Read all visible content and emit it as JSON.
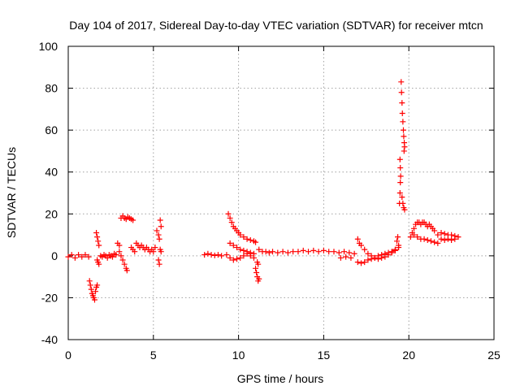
{
  "chart_data": {
    "type": "scatter",
    "title": "Day 104 of 2017, Sidereal Day-to-day VTEC variation (SDTVAR) for receiver mtcn",
    "xlabel": "GPS time / hours",
    "ylabel": "SDTVAR / TECUs",
    "xlim": [
      0,
      25
    ],
    "ylim": [
      -40,
      100
    ],
    "xticks": [
      0,
      5,
      10,
      15,
      20,
      25
    ],
    "yticks": [
      -40,
      -20,
      0,
      20,
      40,
      60,
      80,
      100
    ],
    "grid": true,
    "marker": "+",
    "color": "#ff0000",
    "series": [
      {
        "name": "SDTVAR",
        "points": [
          [
            0.0,
            -0.5
          ],
          [
            0.2,
            0.5
          ],
          [
            0.4,
            -1
          ],
          [
            0.6,
            0.5
          ],
          [
            0.8,
            -0.5
          ],
          [
            1.0,
            0.5
          ],
          [
            1.2,
            -0.5
          ],
          [
            1.25,
            -12
          ],
          [
            1.3,
            -14
          ],
          [
            1.35,
            -16
          ],
          [
            1.4,
            -18
          ],
          [
            1.45,
            -19
          ],
          [
            1.5,
            -20
          ],
          [
            1.55,
            -21
          ],
          [
            1.6,
            -17
          ],
          [
            1.65,
            -15
          ],
          [
            1.7,
            -14
          ],
          [
            1.65,
            11
          ],
          [
            1.7,
            9
          ],
          [
            1.75,
            7
          ],
          [
            1.8,
            5
          ],
          [
            1.7,
            -2
          ],
          [
            1.75,
            -3
          ],
          [
            1.8,
            -4
          ],
          [
            1.9,
            0
          ],
          [
            2.0,
            -0.5
          ],
          [
            2.1,
            0.5
          ],
          [
            2.2,
            0
          ],
          [
            2.3,
            -1
          ],
          [
            2.4,
            0.5
          ],
          [
            2.5,
            0
          ],
          [
            2.6,
            -0.5
          ],
          [
            2.7,
            1
          ],
          [
            2.8,
            0.5
          ],
          [
            2.9,
            6
          ],
          [
            3.0,
            5
          ],
          [
            3.0,
            2
          ],
          [
            3.1,
            0
          ],
          [
            3.2,
            -2
          ],
          [
            3.3,
            -4
          ],
          [
            3.4,
            -6
          ],
          [
            3.45,
            -7
          ],
          [
            3.1,
            18
          ],
          [
            3.2,
            19
          ],
          [
            3.3,
            18
          ],
          [
            3.4,
            17.5
          ],
          [
            3.5,
            18.5
          ],
          [
            3.6,
            18
          ],
          [
            3.7,
            17.5
          ],
          [
            3.8,
            17
          ],
          [
            3.7,
            4
          ],
          [
            3.8,
            3
          ],
          [
            3.9,
            2
          ],
          [
            4.0,
            6
          ],
          [
            4.1,
            5
          ],
          [
            4.2,
            4
          ],
          [
            4.3,
            5
          ],
          [
            4.4,
            4
          ],
          [
            4.5,
            3
          ],
          [
            4.6,
            4
          ],
          [
            4.7,
            3
          ],
          [
            4.8,
            2
          ],
          [
            4.9,
            3
          ],
          [
            5.0,
            2
          ],
          [
            5.1,
            4
          ],
          [
            5.2,
            12
          ],
          [
            5.3,
            10
          ],
          [
            5.35,
            8
          ],
          [
            5.4,
            17
          ],
          [
            5.45,
            14
          ],
          [
            5.3,
            -2
          ],
          [
            5.35,
            -4
          ],
          [
            5.4,
            3
          ],
          [
            5.45,
            2
          ],
          [
            8.0,
            0.5
          ],
          [
            8.2,
            1
          ],
          [
            8.4,
            0.5
          ],
          [
            8.6,
            0.2
          ],
          [
            8.8,
            0.5
          ],
          [
            9.0,
            0
          ],
          [
            9.3,
            0.5
          ],
          [
            9.5,
            -1
          ],
          [
            9.7,
            -2
          ],
          [
            9.9,
            -1.5
          ],
          [
            10.1,
            -1
          ],
          [
            10.3,
            0
          ],
          [
            10.5,
            1
          ],
          [
            10.7,
            0
          ],
          [
            10.9,
            -1
          ],
          [
            9.4,
            20
          ],
          [
            9.5,
            18
          ],
          [
            9.6,
            16
          ],
          [
            9.7,
            14
          ],
          [
            9.8,
            13
          ],
          [
            9.9,
            12
          ],
          [
            10.0,
            11
          ],
          [
            10.1,
            10
          ],
          [
            10.3,
            9
          ],
          [
            10.5,
            8
          ],
          [
            10.7,
            7.5
          ],
          [
            10.9,
            7
          ],
          [
            11.0,
            6.5
          ],
          [
            9.5,
            6
          ],
          [
            9.7,
            5
          ],
          [
            9.9,
            4
          ],
          [
            10.1,
            3
          ],
          [
            10.3,
            2.5
          ],
          [
            10.5,
            2
          ],
          [
            10.7,
            1.5
          ],
          [
            10.9,
            1
          ],
          [
            11.0,
            -6
          ],
          [
            11.05,
            -8
          ],
          [
            11.1,
            -10
          ],
          [
            11.15,
            -12
          ],
          [
            11.2,
            -11
          ],
          [
            11.1,
            -3
          ],
          [
            11.15,
            -4
          ],
          [
            11.2,
            3
          ],
          [
            11.4,
            2
          ],
          [
            11.6,
            2
          ],
          [
            11.8,
            1.5
          ],
          [
            12.0,
            2
          ],
          [
            12.3,
            1.5
          ],
          [
            12.6,
            2
          ],
          [
            12.9,
            1.5
          ],
          [
            13.2,
            2
          ],
          [
            13.5,
            2
          ],
          [
            13.8,
            2.5
          ],
          [
            14.1,
            2
          ],
          [
            14.4,
            2.5
          ],
          [
            14.7,
            2
          ],
          [
            15.0,
            2.5
          ],
          [
            15.3,
            2
          ],
          [
            15.6,
            2
          ],
          [
            15.9,
            1.5
          ],
          [
            16.2,
            2
          ],
          [
            16.5,
            1.5
          ],
          [
            16.8,
            1
          ],
          [
            16.0,
            -1
          ],
          [
            16.3,
            -0.5
          ],
          [
            16.6,
            -1
          ],
          [
            17.0,
            -3
          ],
          [
            17.2,
            -3.5
          ],
          [
            17.4,
            -3
          ],
          [
            17.6,
            -2
          ],
          [
            17.8,
            -1.5
          ],
          [
            18.0,
            -1
          ],
          [
            18.2,
            0
          ],
          [
            18.4,
            0.5
          ],
          [
            18.6,
            1
          ],
          [
            18.8,
            1.5
          ],
          [
            19.0,
            2
          ],
          [
            19.2,
            3
          ],
          [
            19.4,
            4
          ],
          [
            17.0,
            8
          ],
          [
            17.1,
            6
          ],
          [
            17.2,
            5
          ],
          [
            17.4,
            3
          ],
          [
            17.6,
            1
          ],
          [
            17.8,
            0
          ],
          [
            18.0,
            -1
          ],
          [
            18.2,
            -1.5
          ],
          [
            18.4,
            -1
          ],
          [
            18.6,
            -0.5
          ],
          [
            18.8,
            0.5
          ],
          [
            19.0,
            1.5
          ],
          [
            19.2,
            2.5
          ],
          [
            19.3,
            7
          ],
          [
            19.35,
            9
          ],
          [
            19.4,
            5
          ],
          [
            19.45,
            25
          ],
          [
            19.48,
            30
          ],
          [
            19.5,
            35
          ],
          [
            19.52,
            38
          ],
          [
            19.5,
            42
          ],
          [
            19.48,
            46
          ],
          [
            19.55,
            83
          ],
          [
            19.57,
            78
          ],
          [
            19.6,
            73
          ],
          [
            19.62,
            68
          ],
          [
            19.65,
            64
          ],
          [
            19.68,
            60
          ],
          [
            19.7,
            57
          ],
          [
            19.73,
            54
          ],
          [
            19.75,
            52
          ],
          [
            19.72,
            50
          ],
          [
            19.6,
            28
          ],
          [
            19.65,
            25
          ],
          [
            19.7,
            23
          ],
          [
            19.75,
            22
          ],
          [
            20.2,
            11
          ],
          [
            20.3,
            13
          ],
          [
            20.4,
            15
          ],
          [
            20.5,
            16
          ],
          [
            20.6,
            16
          ],
          [
            20.7,
            15
          ],
          [
            20.8,
            16
          ],
          [
            20.9,
            16
          ],
          [
            21.0,
            15
          ],
          [
            21.1,
            14
          ],
          [
            21.2,
            15
          ],
          [
            21.3,
            14
          ],
          [
            21.4,
            13
          ],
          [
            21.5,
            12
          ],
          [
            20.1,
            9
          ],
          [
            20.3,
            10
          ],
          [
            20.5,
            9
          ],
          [
            20.7,
            8
          ],
          [
            20.9,
            8
          ],
          [
            21.1,
            7.5
          ],
          [
            21.3,
            7
          ],
          [
            21.5,
            6.5
          ],
          [
            21.7,
            6
          ],
          [
            21.7,
            10
          ],
          [
            21.9,
            11
          ],
          [
            22.1,
            10.5
          ],
          [
            22.3,
            10
          ],
          [
            22.5,
            10
          ],
          [
            22.7,
            9.5
          ],
          [
            22.9,
            9
          ],
          [
            21.9,
            8
          ],
          [
            22.1,
            7.5
          ],
          [
            22.3,
            8
          ],
          [
            22.5,
            7.5
          ],
          [
            22.7,
            8
          ]
        ]
      }
    ]
  }
}
